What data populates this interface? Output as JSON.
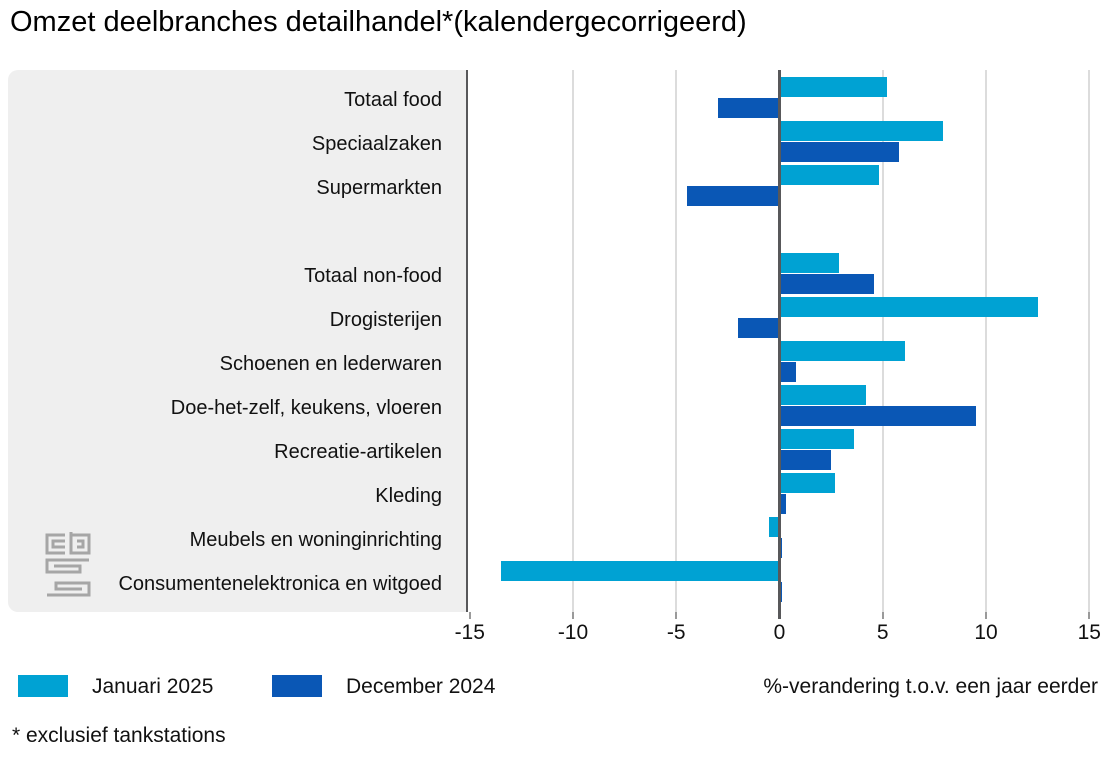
{
  "title": "Omzet deelbranches detailhandel*(kalendergecorrigeerd)",
  "footnote": "* exclusief tankstations",
  "axis_note": "%-verandering t.o.v. een jaar eerder",
  "logo_name": "cbs-logo",
  "chart_data": {
    "type": "bar",
    "orientation": "horizontal",
    "title": "Omzet deelbranches detailhandel*(kalendergecorrigeerd)",
    "xlabel": "%-verandering t.o.v. een jaar eerder",
    "categories": [
      "Totaal food",
      "Speciaalzaken",
      "Supermarkten",
      "Totaal non-food",
      "Drogisterijen",
      "Schoenen en lederwaren",
      "Doe-het-zelf, keukens, vloeren",
      "Recreatie-artikelen",
      "Kleding",
      "Meubels en woninginrichting",
      "Consumentenelektronica en witgoed"
    ],
    "group_gap_after_index": 2,
    "series": [
      {
        "name": "Januari 2025",
        "color": "#00a2d3",
        "values": [
          5.2,
          7.9,
          4.8,
          2.9,
          12.5,
          6.1,
          4.2,
          3.6,
          2.7,
          -0.5,
          -13.5
        ]
      },
      {
        "name": "December 2024",
        "color": "#0a57b5",
        "values": [
          -3.0,
          5.8,
          -4.5,
          4.6,
          -2.0,
          0.8,
          9.5,
          2.5,
          0.3,
          0.1,
          0.1
        ]
      }
    ],
    "x_ticks": [
      -15,
      -10,
      -5,
      0,
      5,
      10,
      15
    ],
    "xlim": [
      -15.2,
      16
    ],
    "grid": true,
    "legend_position": "bottom-left",
    "zero_line": true,
    "panel_color": "#efefef"
  }
}
